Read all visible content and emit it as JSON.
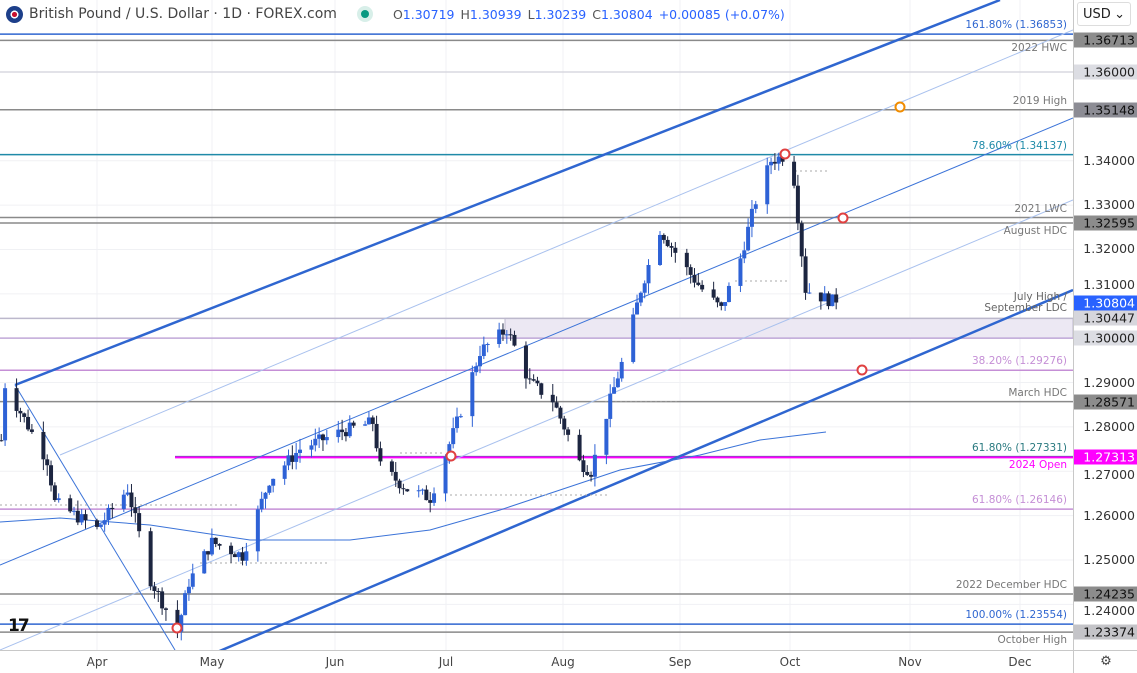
{
  "header": {
    "title": "British Pound / U.S. Dollar · 1D · FOREX.com",
    "open_label": "O",
    "open": "1.30719",
    "high_label": "H",
    "high": "1.30939",
    "low_label": "L",
    "low": "1.30239",
    "close_label": "C",
    "close": "1.30804",
    "change": "+0.00085 (+0.07%)",
    "currency": "USD"
  },
  "colors": {
    "up": "#2e62d6",
    "down": "#1c2540",
    "accent": "#2962ff",
    "open_2024": "#ff00ff"
  },
  "chart_data": {
    "type": "candlestick",
    "symbol": "GBPUSD",
    "ylim": [
      1.2295,
      1.3765
    ],
    "x_ticks": [
      "Apr",
      "May",
      "Jun",
      "Jul",
      "Aug",
      "Sep",
      "Oct",
      "Nov",
      "Dec"
    ],
    "y_ticks": [
      "1.34000",
      "1.33000",
      "1.32000",
      "1.31000",
      "1.29000",
      "1.28000",
      "1.27000",
      "1.26000",
      "1.25000",
      "1.24000"
    ],
    "close_pivots": [
      [
        "2024-03-07",
        1.277
      ],
      [
        "2024-03-08",
        1.2895
      ],
      [
        "2024-03-19",
        1.2725
      ],
      [
        "2024-03-21",
        1.263
      ],
      [
        "2024-04-01",
        1.257
      ],
      [
        "2024-04-09",
        1.266
      ],
      [
        "2024-04-15",
        1.2455
      ],
      [
        "2024-04-22",
        1.234
      ],
      [
        "2024-04-25",
        1.245
      ],
      [
        "2024-05-01",
        1.254
      ],
      [
        "2024-05-09",
        1.251
      ],
      [
        "2024-05-16",
        1.268
      ],
      [
        "2024-05-24",
        1.275
      ],
      [
        "2024-06-04",
        1.279
      ],
      [
        "2024-06-12",
        1.281
      ],
      [
        "2024-06-14",
        1.271
      ],
      [
        "2024-06-21",
        1.266
      ],
      [
        "2024-06-27",
        1.264
      ],
      [
        "2024-07-04",
        1.281
      ],
      [
        "2024-07-10",
        1.297
      ],
      [
        "2024-07-17",
        1.302
      ],
      [
        "2024-07-23",
        1.29
      ],
      [
        "2024-07-29",
        1.286
      ],
      [
        "2024-08-05",
        1.272
      ],
      [
        "2024-08-08",
        1.27
      ],
      [
        "2024-08-13",
        1.286
      ],
      [
        "2024-08-17",
        1.297
      ],
      [
        "2024-08-21",
        1.311
      ],
      [
        "2024-08-26",
        1.3245
      ],
      [
        "2024-09-02",
        1.3155
      ],
      [
        "2024-09-06",
        1.311
      ],
      [
        "2024-09-11",
        1.3065
      ],
      [
        "2024-09-16",
        1.318
      ],
      [
        "2024-09-20",
        1.331
      ],
      [
        "2024-09-24",
        1.34
      ],
      [
        "2024-09-27",
        1.341
      ],
      [
        "2024-09-30",
        1.3356
      ],
      [
        "2024-10-03",
        1.311
      ],
      [
        "2024-10-08",
        1.309
      ],
      [
        "2024-10-11",
        1.30804
      ]
    ],
    "levels": [
      {
        "price": 1.36853,
        "label": "161.80% (1.36853)",
        "color": "#2f66d0",
        "tag": ""
      },
      {
        "price": 1.36713,
        "label": "2022 HWC",
        "color": "#8a8a8a",
        "tag": "1.36713",
        "tag_bg": "#8c8c8c",
        "tag_fg": "#111"
      },
      {
        "price": 1.36,
        "label": "",
        "color": "#d8d8e0",
        "tag": "1.36000",
        "tag_bg": "#dcdde3",
        "tag_fg": "#222"
      },
      {
        "price": 1.35148,
        "label": "2019 High",
        "color": "#8a8a8a",
        "tag": "1.35148",
        "tag_bg": "#8c8c94",
        "tag_fg": "#111"
      },
      {
        "price": 1.34137,
        "label": "78.60% (1.34137)",
        "color": "#1f8aa8",
        "tag": ""
      },
      {
        "price": 1.3272,
        "label": "2021 LWC",
        "color": "#8a8a8a",
        "tag": ""
      },
      {
        "price": 1.32595,
        "label": "August HDC",
        "color": "#8a8a8a",
        "tag": "1.32595",
        "tag_bg": "#8c8c8c",
        "tag_fg": "#111"
      },
      {
        "price": 1.30804,
        "label": "",
        "color": "",
        "tag": "1.30804",
        "tag_bg": "#2962ff",
        "tag_fg": "#fff"
      },
      {
        "price": 1.30447,
        "label": "July High / September LDC",
        "color": "#bcb8cc",
        "tag": "1.30447",
        "tag_bg": "#d6d6dc",
        "tag_fg": "#222"
      },
      {
        "price": 1.3,
        "label": "",
        "color": "#c0a8d8",
        "tag": "1.30000",
        "tag_bg": "#dcdde3",
        "tag_fg": "#222"
      },
      {
        "price": 1.29276,
        "label": "38.20% (1.29276)",
        "color": "#c58fd6",
        "tag": ""
      },
      {
        "price": 1.28571,
        "label": "March HDC",
        "color": "#8a8a8a",
        "tag": "1.28571",
        "tag_bg": "#8c8c8c",
        "tag_fg": "#111"
      },
      {
        "price": 1.27331,
        "label": "61.80% (1.27331)",
        "color": "#2a7a80",
        "tag": ""
      },
      {
        "price": 1.27313,
        "label": "2024 Open",
        "color": "#ff00ff",
        "tag": "1.27313",
        "tag_bg": "#ff00ff",
        "tag_fg": "#fff"
      },
      {
        "price": 1.26146,
        "label": "61.80% (1.26146)",
        "color": "#c58fd6",
        "tag": ""
      },
      {
        "price": 1.24235,
        "label": "2022 December HDC",
        "color": "#8a8a8a",
        "tag": "1.24235",
        "tag_bg": "#8c8c8c",
        "tag_fg": "#111"
      },
      {
        "price": 1.23554,
        "label": "100.00% (1.23554)",
        "color": "#2f66d0",
        "tag": ""
      },
      {
        "price": 1.23374,
        "label": "October High",
        "color": "#8a8a8a",
        "tag": "1.23374",
        "tag_bg": "#c4c4c8",
        "tag_fg": "#111"
      }
    ]
  },
  "footer": {
    "settings_icon": "gear-icon",
    "logo": "TV"
  }
}
